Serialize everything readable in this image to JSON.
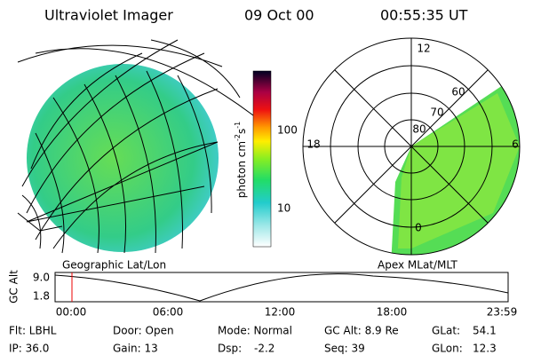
{
  "header": {
    "title": "Ultraviolet Imager",
    "date": "09 Oct 00",
    "time": "00:55:35 UT"
  },
  "colorbar": {
    "unit": "photon cm",
    "exp1": "-2",
    "unit2": "s",
    "exp2": "-1",
    "ticks": [
      "100",
      "10"
    ]
  },
  "polar": {
    "mlt": [
      "12",
      "18",
      "6",
      "0"
    ],
    "mlat": [
      "60",
      "70",
      "80"
    ]
  },
  "captions": {
    "left": "Geographic Lat/Lon",
    "right": "Apex MLat/MLT"
  },
  "altplot": {
    "label": "GC Alt",
    "ticks": [
      "9.0",
      "1.8"
    ],
    "times": [
      "00:00",
      "06:00",
      "12:00",
      "18:00",
      "23:59"
    ]
  },
  "info": {
    "flt": "Flt: LBHL",
    "ip": "IP: 36.0",
    "door": "Door: Open",
    "gain": "Gain: 13",
    "mode": "Mode: Normal",
    "dsp_label": "Dsp:",
    "dsp": "-2.2",
    "gcalt": "GC Alt: 8.9 Re",
    "seq": "Seq: 39",
    "glat_label": "GLat:",
    "glat": "54.1",
    "glon_label": "GLon:",
    "glon": "12.3"
  }
}
